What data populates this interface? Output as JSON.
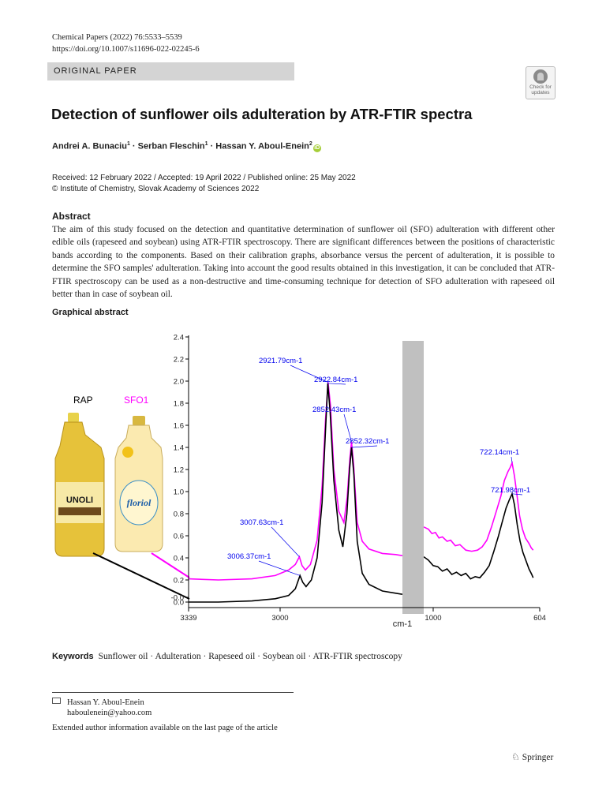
{
  "header": {
    "journal_citation": "Chemical Papers (2022) 76:5533–5539",
    "doi": "https://doi.org/10.1007/s11696-022-02245-6",
    "article_type": "ORIGINAL PAPER",
    "check_updates": {
      "line1": "Check for",
      "line2": "updates"
    }
  },
  "title": "Detection of sunflower oils adulteration by ATR-FTIR spectra",
  "authors": [
    {
      "name": "Andrei A. Bunaciu",
      "aff": "1"
    },
    {
      "name": "Serban Fleschin",
      "aff": "1"
    },
    {
      "name": "Hassan Y. Aboul-Enein",
      "aff": "2"
    }
  ],
  "author_separator": " · ",
  "dates": {
    "line1": "Received: 12 February 2022 / Accepted: 19 April 2022 / Published online: 25 May 2022",
    "line2": "© Institute of Chemistry, Slovak Academy of Sciences 2022"
  },
  "abstract": {
    "heading": "Abstract",
    "text": "The aim of this study focused on the detection and quantitative determination of sunflower oil (SFO) adulteration with different other edible oils (rapeseed and soybean) using ATR-FTIR spectroscopy. There are significant differences between the positions of characteristic bands according to the components. Based on their calibration graphs, absorbance versus the percent of adulteration, it is possible to determine the SFO samples' adulteration. Taking into account the good results obtained in this investigation, it can be concluded that ATR-FTIR spectroscopy can be used as a non-destructive and time-consuming technique for detection of SFO adulteration with rapeseed oil better than in case of soybean oil."
  },
  "graphical_abstract": {
    "heading": "Graphical abstract",
    "labels": {
      "rap": "RAP",
      "sfo1": "SFO1"
    },
    "bottle_brands": {
      "rap": "UNOLI",
      "sfo": "floriol"
    },
    "colors": {
      "rap": "#000000",
      "sfo1": "#ff00ff",
      "annotation": "#0000ee",
      "break": "#c0c0c0"
    }
  },
  "chart_data": {
    "type": "line",
    "xlabel": "cm-1",
    "x_ticks": [
      "3339",
      "3000",
      "1000",
      "604"
    ],
    "y_ticks": [
      "-0.0",
      "0.0",
      "0.2",
      "0.4",
      "0.6",
      "0.8",
      "1.0",
      "1.2",
      "1.4",
      "1.6",
      "1.8",
      "2.0",
      "2.2",
      "2.4"
    ],
    "ylim": [
      -0.05,
      2.4
    ],
    "xlim": [
      3339,
      604
    ],
    "axis_break": [
      2700,
      1100
    ],
    "series": [
      {
        "name": "SFO1",
        "color": "#ff00ff",
        "points": [
          [
            3339,
            0.21
          ],
          [
            3250,
            0.2
          ],
          [
            3150,
            0.21
          ],
          [
            3080,
            0.24
          ],
          [
            3040,
            0.29
          ],
          [
            3020,
            0.34
          ],
          [
            3008,
            0.41
          ],
          [
            3000,
            0.33
          ],
          [
            2990,
            0.29
          ],
          [
            2975,
            0.34
          ],
          [
            2955,
            0.56
          ],
          [
            2940,
            1.05
          ],
          [
            2930,
            1.65
          ],
          [
            2922,
            1.99
          ],
          [
            2915,
            1.78
          ],
          [
            2905,
            1.2
          ],
          [
            2890,
            0.82
          ],
          [
            2875,
            0.72
          ],
          [
            2865,
            0.95
          ],
          [
            2857,
            1.3
          ],
          [
            2852,
            1.45
          ],
          [
            2846,
            1.25
          ],
          [
            2835,
            0.72
          ],
          [
            2820,
            0.55
          ],
          [
            2800,
            0.48
          ],
          [
            2760,
            0.44
          ],
          [
            2720,
            0.43
          ],
          [
            2700,
            0.42
          ],
          [
            1100,
            0.68
          ],
          [
            1080,
            0.66
          ],
          [
            1065,
            0.62
          ],
          [
            1050,
            0.63
          ],
          [
            1035,
            0.58
          ],
          [
            1020,
            0.59
          ],
          [
            1000,
            0.55
          ],
          [
            985,
            0.56
          ],
          [
            965,
            0.51
          ],
          [
            945,
            0.52
          ],
          [
            920,
            0.47
          ],
          [
            895,
            0.46
          ],
          [
            870,
            0.47
          ],
          [
            850,
            0.5
          ],
          [
            830,
            0.56
          ],
          [
            810,
            0.68
          ],
          [
            790,
            0.82
          ],
          [
            770,
            0.96
          ],
          [
            755,
            1.1
          ],
          [
            740,
            1.18
          ],
          [
            730,
            1.22
          ],
          [
            722,
            1.26
          ],
          [
            712,
            1.14
          ],
          [
            700,
            0.95
          ],
          [
            690,
            0.78
          ],
          [
            678,
            0.66
          ],
          [
            665,
            0.58
          ],
          [
            650,
            0.53
          ],
          [
            640,
            0.49
          ],
          [
            632,
            0.47
          ]
        ]
      },
      {
        "name": "RAP",
        "color": "#000000",
        "points": [
          [
            3339,
            0.0
          ],
          [
            3250,
            0.0
          ],
          [
            3150,
            0.01
          ],
          [
            3080,
            0.03
          ],
          [
            3040,
            0.06
          ],
          [
            3020,
            0.12
          ],
          [
            3006,
            0.24
          ],
          [
            2998,
            0.18
          ],
          [
            2988,
            0.14
          ],
          [
            2972,
            0.2
          ],
          [
            2955,
            0.4
          ],
          [
            2940,
            0.9
          ],
          [
            2930,
            1.55
          ],
          [
            2923,
            1.98
          ],
          [
            2916,
            1.72
          ],
          [
            2905,
            1.1
          ],
          [
            2890,
            0.65
          ],
          [
            2878,
            0.5
          ],
          [
            2866,
            0.8
          ],
          [
            2858,
            1.2
          ],
          [
            2852,
            1.4
          ],
          [
            2845,
            1.15
          ],
          [
            2835,
            0.55
          ],
          [
            2820,
            0.26
          ],
          [
            2800,
            0.16
          ],
          [
            2760,
            0.1
          ],
          [
            2720,
            0.08
          ],
          [
            2700,
            0.07
          ],
          [
            1100,
            0.41
          ],
          [
            1080,
            0.38
          ],
          [
            1060,
            0.33
          ],
          [
            1040,
            0.32
          ],
          [
            1020,
            0.28
          ],
          [
            1000,
            0.3
          ],
          [
            980,
            0.25
          ],
          [
            960,
            0.27
          ],
          [
            940,
            0.24
          ],
          [
            920,
            0.26
          ],
          [
            900,
            0.21
          ],
          [
            880,
            0.23
          ],
          [
            860,
            0.22
          ],
          [
            840,
            0.27
          ],
          [
            820,
            0.33
          ],
          [
            800,
            0.46
          ],
          [
            780,
            0.6
          ],
          [
            765,
            0.72
          ],
          [
            748,
            0.85
          ],
          [
            735,
            0.92
          ],
          [
            722,
            0.98
          ],
          [
            712,
            0.88
          ],
          [
            700,
            0.7
          ],
          [
            688,
            0.55
          ],
          [
            676,
            0.45
          ],
          [
            662,
            0.37
          ],
          [
            650,
            0.3
          ],
          [
            638,
            0.25
          ],
          [
            632,
            0.22
          ]
        ]
      }
    ],
    "annotations": [
      {
        "label": "2921.79cm-1",
        "x": 2922,
        "y": 1.99,
        "series": "SFO1"
      },
      {
        "label": "2922.84cm-1",
        "x": 2923,
        "y": 1.98,
        "series": "RAP"
      },
      {
        "label": "2852.43cm-1",
        "x": 2852,
        "y": 1.45,
        "series": "SFO1"
      },
      {
        "label": "2852.32cm-1",
        "x": 2852,
        "y": 1.4,
        "series": "RAP"
      },
      {
        "label": "3007.63cm-1",
        "x": 3008,
        "y": 0.41,
        "series": "SFO1"
      },
      {
        "label": "3006.37cm-1",
        "x": 3006,
        "y": 0.24,
        "series": "RAP"
      },
      {
        "label": "722.14cm-1",
        "x": 722,
        "y": 1.26,
        "series": "SFO1"
      },
      {
        "label": "721.98cm-1",
        "x": 722,
        "y": 0.98,
        "series": "RAP"
      }
    ]
  },
  "keywords": {
    "label": "Keywords",
    "items": [
      "Sunflower oil",
      "Adulteration",
      "Rapeseed oil",
      "Soybean oil",
      "ATR-FTIR spectroscopy"
    ]
  },
  "correspondence": {
    "name": "Hassan Y. Aboul-Enein",
    "email": "haboulenein@yahoo.com"
  },
  "extended_info": "Extended author information available on the last page of the article",
  "publisher": "Springer"
}
